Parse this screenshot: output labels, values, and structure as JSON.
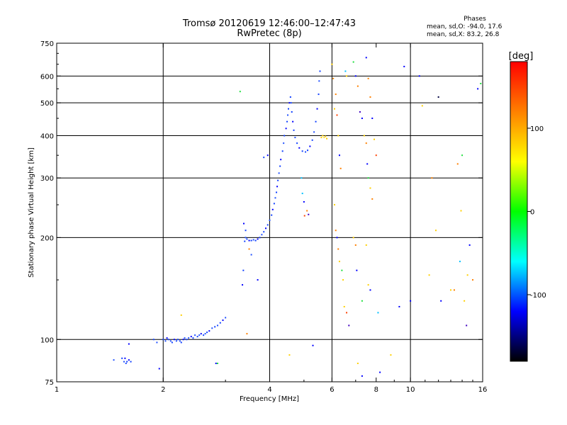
{
  "title_line1": "Tromsø 20120619 12:46:00–12:47:43",
  "title_line2": "RwPretec (8p)",
  "phases": {
    "header": "Phases",
    "line1": "mean, sd,O: -94.0, 17.6",
    "line2": "mean, sd,X:  83.2, 26.8"
  },
  "colorbar": {
    "label": "[deg]",
    "ticks": [
      "100",
      "0",
      "-100"
    ],
    "tick_values": [
      100,
      0,
      -100
    ],
    "range": [
      -180,
      180
    ],
    "colors": [
      "#ff0000",
      "#ff8000",
      "#ffff00",
      "#00ff00",
      "#00ffff",
      "#0000ff",
      "#000000"
    ]
  },
  "chart_data": {
    "type": "scatter",
    "xlabel": "Frequency [MHz]",
    "ylabel": "Stationary phase Virtual Height [km]",
    "x_scale": "log",
    "y_scale": "log",
    "xlim": [
      1,
      16
    ],
    "ylim": [
      75,
      750
    ],
    "x_ticks": [
      1,
      2,
      4,
      6,
      8,
      10,
      16
    ],
    "x_tick_labels": [
      "1",
      "2",
      "4",
      "6",
      "8",
      "10",
      "16"
    ],
    "x_gridlines": [
      2,
      4,
      6,
      10
    ],
    "y_ticks": [
      75,
      100,
      200,
      300,
      400,
      500,
      600,
      750
    ],
    "y_tick_labels": [
      "75",
      "100",
      "200",
      "300",
      "400",
      "500",
      "600",
      "750"
    ],
    "y_gridlines": [
      100,
      200,
      300,
      400,
      500,
      600
    ],
    "grid": true,
    "o_mode_color": "#1040ff",
    "points": [
      [
        1.45,
        87,
        "#2050ff"
      ],
      [
        1.53,
        88,
        "#1040ff"
      ],
      [
        1.55,
        86,
        "#2050ff"
      ],
      [
        1.56,
        88,
        "#0000ff"
      ],
      [
        1.57,
        85,
        "#2050ff"
      ],
      [
        1.58,
        86,
        "#1040ff"
      ],
      [
        1.6,
        87,
        "#0000ff"
      ],
      [
        1.62,
        86,
        "#1040ff"
      ],
      [
        1.6,
        97,
        "#0000ff"
      ],
      [
        1.88,
        100,
        "#1040ff"
      ],
      [
        1.92,
        98,
        "#2050ff"
      ],
      [
        1.95,
        82,
        "#0000ff"
      ],
      [
        2.0,
        100,
        "#1040ff"
      ],
      [
        2.03,
        99,
        "#2050ff"
      ],
      [
        2.05,
        101,
        "#0000ff"
      ],
      [
        2.07,
        100,
        "#1040ff"
      ],
      [
        2.1,
        99,
        "#2050ff"
      ],
      [
        2.12,
        98,
        "#1040ff"
      ],
      [
        2.15,
        100,
        "#0000ff"
      ],
      [
        2.18,
        99,
        "#2050ff"
      ],
      [
        2.2,
        100,
        "#1040ff"
      ],
      [
        2.23,
        99,
        "#2050ff"
      ],
      [
        2.25,
        98,
        "#1040ff"
      ],
      [
        2.28,
        100,
        "#0000ff"
      ],
      [
        2.3,
        101,
        "#2050ff"
      ],
      [
        2.33,
        100,
        "#1040ff"
      ],
      [
        2.36,
        101,
        "#2050ff"
      ],
      [
        2.4,
        102,
        "#0000ff"
      ],
      [
        2.43,
        101,
        "#1040ff"
      ],
      [
        2.46,
        103,
        "#2050ff"
      ],
      [
        2.5,
        102,
        "#1040ff"
      ],
      [
        2.53,
        103,
        "#2050ff"
      ],
      [
        2.56,
        104,
        "#0000ff"
      ],
      [
        2.6,
        103,
        "#1040ff"
      ],
      [
        2.63,
        104,
        "#2050ff"
      ],
      [
        2.66,
        105,
        "#1040ff"
      ],
      [
        2.7,
        106,
        "#0000ff"
      ],
      [
        2.75,
        108,
        "#2050ff"
      ],
      [
        2.8,
        109,
        "#1040ff"
      ],
      [
        2.85,
        110,
        "#2050ff"
      ],
      [
        2.9,
        112,
        "#1040ff"
      ],
      [
        2.95,
        114,
        "#0000ff"
      ],
      [
        3.0,
        116,
        "#2050ff"
      ],
      [
        2.25,
        118,
        "#ffd000"
      ],
      [
        2.85,
        85,
        "#20e040"
      ],
      [
        2.82,
        85,
        "#0000ff"
      ],
      [
        3.35,
        145,
        "#0000ff"
      ],
      [
        3.37,
        160,
        "#1040ff"
      ],
      [
        3.45,
        104,
        "#ff8000"
      ],
      [
        3.4,
        195,
        "#1040ff"
      ],
      [
        3.42,
        200,
        "#2050ff"
      ],
      [
        3.45,
        198,
        "#1040ff"
      ],
      [
        3.5,
        196,
        "#0000ff"
      ],
      [
        3.55,
        196,
        "#1040ff"
      ],
      [
        3.6,
        197,
        "#2050ff"
      ],
      [
        3.65,
        196,
        "#1040ff"
      ],
      [
        3.7,
        198,
        "#0000ff"
      ],
      [
        3.75,
        200,
        "#1040ff"
      ],
      [
        3.8,
        204,
        "#2050ff"
      ],
      [
        3.85,
        208,
        "#1040ff"
      ],
      [
        3.9,
        213,
        "#0000ff"
      ],
      [
        3.95,
        218,
        "#1040ff"
      ],
      [
        4.0,
        225,
        "#2050ff"
      ],
      [
        4.05,
        233,
        "#1040ff"
      ],
      [
        4.08,
        242,
        "#0000ff"
      ],
      [
        4.12,
        252,
        "#1040ff"
      ],
      [
        4.15,
        262,
        "#2050ff"
      ],
      [
        4.18,
        272,
        "#1040ff"
      ],
      [
        4.2,
        283,
        "#0000ff"
      ],
      [
        4.22,
        295,
        "#1040ff"
      ],
      [
        4.25,
        310,
        "#2050ff"
      ],
      [
        4.28,
        325,
        "#1040ff"
      ],
      [
        4.3,
        340,
        "#0000ff"
      ],
      [
        4.35,
        360,
        "#1040ff"
      ],
      [
        4.38,
        380,
        "#2050ff"
      ],
      [
        4.4,
        400,
        "#1040ff"
      ],
      [
        4.45,
        420,
        "#0000ff"
      ],
      [
        4.48,
        440,
        "#1040ff"
      ],
      [
        4.5,
        460,
        "#2050ff"
      ],
      [
        4.52,
        480,
        "#1040ff"
      ],
      [
        4.55,
        500,
        "#0000ff"
      ],
      [
        4.58,
        520,
        "#1040ff"
      ],
      [
        4.6,
        500,
        "#2050ff"
      ],
      [
        4.62,
        470,
        "#1040ff"
      ],
      [
        4.65,
        440,
        "#0000ff"
      ],
      [
        4.68,
        415,
        "#1040ff"
      ],
      [
        4.72,
        395,
        "#2050ff"
      ],
      [
        4.78,
        380,
        "#1040ff"
      ],
      [
        4.85,
        368,
        "#0000ff"
      ],
      [
        4.95,
        360,
        "#1040ff"
      ],
      [
        5.05,
        358,
        "#2050ff"
      ],
      [
        5.12,
        362,
        "#1040ff"
      ],
      [
        5.2,
        372,
        "#0000ff"
      ],
      [
        5.28,
        388,
        "#1040ff"
      ],
      [
        5.34,
        410,
        "#2050ff"
      ],
      [
        5.4,
        440,
        "#1040ff"
      ],
      [
        5.45,
        480,
        "#0000ff"
      ],
      [
        5.5,
        530,
        "#1040ff"
      ],
      [
        5.52,
        580,
        "#2050ff"
      ],
      [
        5.55,
        620,
        "#1040ff"
      ],
      [
        3.38,
        220,
        "#0000ff"
      ],
      [
        3.42,
        210,
        "#1040ff"
      ],
      [
        3.5,
        185,
        "#ff8000"
      ],
      [
        3.55,
        178,
        "#2050ff"
      ],
      [
        3.7,
        150,
        "#0000ff"
      ],
      [
        3.3,
        540,
        "#20e040"
      ],
      [
        3.85,
        345,
        "#1040ff"
      ],
      [
        3.95,
        350,
        "#0000ff"
      ],
      [
        4.55,
        90,
        "#ffd000"
      ],
      [
        4.92,
        300,
        "#00c0ff"
      ],
      [
        4.95,
        270,
        "#00c0ff"
      ],
      [
        5.0,
        255,
        "#0000ff"
      ],
      [
        5.02,
        232,
        "#ff4000"
      ],
      [
        5.1,
        240,
        "#ff8000"
      ],
      [
        5.15,
        234,
        "#4000c0"
      ],
      [
        5.3,
        96,
        "#0000ff"
      ],
      [
        5.6,
        395,
        "#ffd000"
      ],
      [
        5.65,
        400,
        "#ffd000"
      ],
      [
        5.7,
        395,
        "#ffe040"
      ],
      [
        5.75,
        398,
        "#ffd000"
      ],
      [
        5.8,
        392,
        "#ffd000"
      ],
      [
        6.0,
        650,
        "#ffd000"
      ],
      [
        6.05,
        590,
        "#ff8000"
      ],
      [
        6.1,
        480,
        "#ffd000"
      ],
      [
        6.15,
        530,
        "#ff8000"
      ],
      [
        6.2,
        460,
        "#ff4000"
      ],
      [
        6.25,
        400,
        "#ffd000"
      ],
      [
        6.3,
        350,
        "#0000ff"
      ],
      [
        6.35,
        320,
        "#ff8000"
      ],
      [
        6.1,
        250,
        "#ffd000"
      ],
      [
        6.15,
        210,
        "#ff8000"
      ],
      [
        6.2,
        200,
        "#0000ff"
      ],
      [
        6.25,
        185,
        "#ff8000"
      ],
      [
        6.3,
        170,
        "#ffd000"
      ],
      [
        6.4,
        160,
        "#20e040"
      ],
      [
        6.45,
        150,
        "#ffd000"
      ],
      [
        6.5,
        125,
        "#ffd000"
      ],
      [
        6.6,
        120,
        "#ff4000"
      ],
      [
        6.7,
        110,
        "#4000c0"
      ],
      [
        6.9,
        200,
        "#ffd000"
      ],
      [
        7.0,
        190,
        "#ff8000"
      ],
      [
        7.05,
        160,
        "#0000ff"
      ],
      [
        6.55,
        620,
        "#00c0ff"
      ],
      [
        6.6,
        600,
        "#ffd000"
      ],
      [
        6.9,
        660,
        "#20e040"
      ],
      [
        7.0,
        600,
        "#0000ff"
      ],
      [
        7.1,
        560,
        "#ff8000"
      ],
      [
        7.2,
        470,
        "#4000c0"
      ],
      [
        7.3,
        450,
        "#0000ff"
      ],
      [
        7.4,
        400,
        "#ffd000"
      ],
      [
        7.5,
        380,
        "#ff8000"
      ],
      [
        7.55,
        330,
        "#0000ff"
      ],
      [
        7.6,
        300,
        "#20e040"
      ],
      [
        7.7,
        280,
        "#ffd000"
      ],
      [
        7.8,
        260,
        "#ff8000"
      ],
      [
        7.5,
        190,
        "#ffd000"
      ],
      [
        7.6,
        145,
        "#ffd000"
      ],
      [
        7.7,
        140,
        "#0000ff"
      ],
      [
        7.3,
        130,
        "#20e040"
      ],
      [
        7.1,
        85,
        "#ffd000"
      ],
      [
        7.5,
        680,
        "#0000ff"
      ],
      [
        7.6,
        590,
        "#ff8000"
      ],
      [
        7.7,
        520,
        "#ff8000"
      ],
      [
        7.8,
        450,
        "#0000ff"
      ],
      [
        7.9,
        390,
        "#ffd000"
      ],
      [
        8.0,
        350,
        "#ff4000"
      ],
      [
        8.1,
        120,
        "#00c0ff"
      ],
      [
        8.2,
        80,
        "#0000ff"
      ],
      [
        7.3,
        78,
        "#0000ff"
      ],
      [
        8.8,
        90,
        "#ffd000"
      ],
      [
        9.3,
        125,
        "#0000ff"
      ],
      [
        9.6,
        640,
        "#0000ff"
      ],
      [
        10.0,
        130,
        "#0000ff"
      ],
      [
        10.6,
        600,
        "#0000ff"
      ],
      [
        10.8,
        490,
        "#ffd000"
      ],
      [
        11.3,
        155,
        "#ffd000"
      ],
      [
        11.5,
        300,
        "#ff8000"
      ],
      [
        11.8,
        210,
        "#ffd000"
      ],
      [
        12.0,
        520,
        "#000040"
      ],
      [
        12.2,
        130,
        "#0000ff"
      ],
      [
        13.0,
        140,
        "#ffd000"
      ],
      [
        13.3,
        140,
        "#ff8000"
      ],
      [
        13.6,
        330,
        "#ff8000"
      ],
      [
        13.8,
        170,
        "#00c0ff"
      ],
      [
        13.9,
        240,
        "#ffd000"
      ],
      [
        14.0,
        350,
        "#20e040"
      ],
      [
        14.2,
        130,
        "#ffd000"
      ],
      [
        14.4,
        110,
        "#4000c0"
      ],
      [
        14.5,
        155,
        "#ffd000"
      ],
      [
        14.7,
        190,
        "#0000ff"
      ],
      [
        15.0,
        150,
        "#ff8000"
      ],
      [
        15.5,
        550,
        "#0000ff"
      ],
      [
        15.8,
        570,
        "#20e040"
      ]
    ]
  }
}
